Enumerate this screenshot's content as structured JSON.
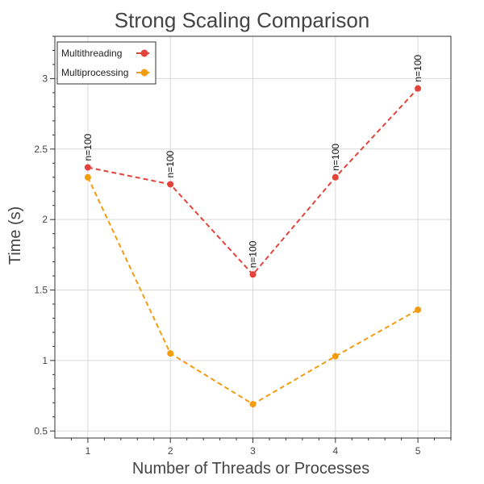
{
  "chart_data": {
    "type": "line",
    "title": "Strong Scaling Comparison",
    "xlabel": "Number of Threads or Processes",
    "ylabel": "Time (s)",
    "x": [
      1,
      2,
      3,
      4,
      5
    ],
    "xlim": [
      0.6,
      5.4
    ],
    "ylim": [
      0.45,
      3.3
    ],
    "x_ticks": [
      1,
      2,
      3,
      4,
      5
    ],
    "y_ticks": [
      0.5,
      1,
      1.5,
      2,
      2.5,
      3
    ],
    "y_tick_labels": [
      "0.5",
      "1",
      "1.5",
      "2",
      "2.5",
      "3"
    ],
    "grid": true,
    "legend_position": "top-left",
    "series": [
      {
        "name": "Multithreading",
        "color": "#e3433a",
        "line_style": "dashed",
        "values": [
          2.37,
          2.25,
          1.61,
          2.3,
          2.93
        ],
        "annotations": [
          "n=100",
          "n=100",
          "n=100",
          "n=100",
          "n=100"
        ]
      },
      {
        "name": "Multiprocessing",
        "color": "#f39c12",
        "line_style": "dashed",
        "values": [
          2.3,
          1.05,
          0.69,
          1.03,
          1.36
        ]
      }
    ]
  }
}
